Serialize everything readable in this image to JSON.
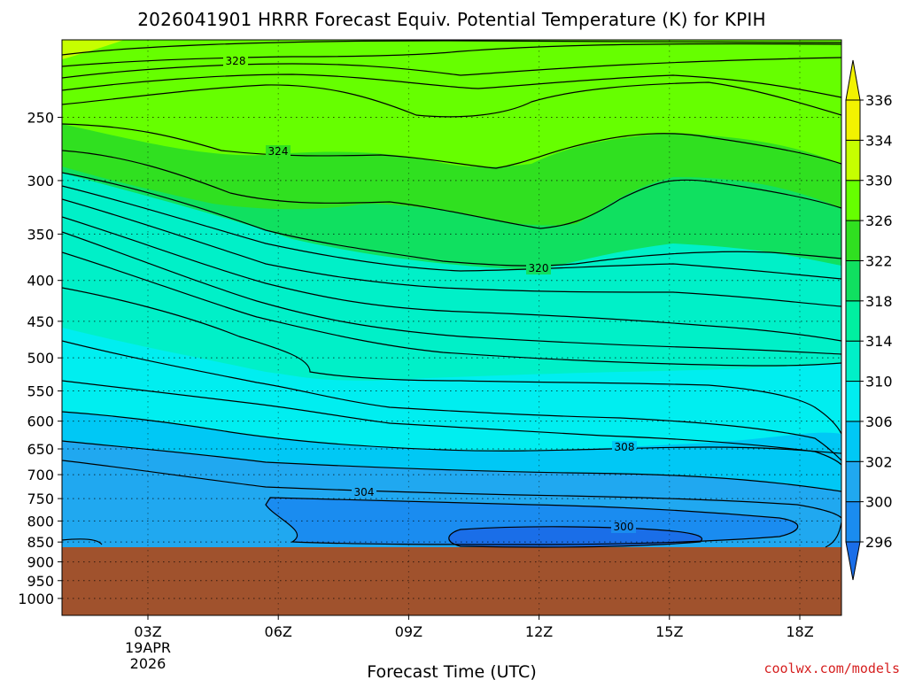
{
  "chart_data": {
    "type": "contour",
    "title": "2026041901 HRRR Forecast Equiv. Potential Temperature (K) for KPIH",
    "xlabel": "Forecast Time (UTC)",
    "ylabel": "",
    "x_tick_labels": [
      "03Z",
      "06Z",
      "09Z",
      "12Z",
      "15Z",
      "18Z"
    ],
    "x_date_label": [
      "19APR",
      "2026"
    ],
    "y_scale": "log",
    "y_ticks": [
      250,
      300,
      350,
      400,
      450,
      500,
      550,
      600,
      650,
      700,
      750,
      800,
      850,
      900,
      950,
      1000
    ],
    "y_range_hpa": [
      200,
      1050
    ],
    "surface_pressure_hpa": 862,
    "grid": true,
    "colorbar": {
      "levels": [
        296,
        300,
        302,
        306,
        310,
        314,
        318,
        322,
        326,
        330,
        334,
        336
      ],
      "colors": [
        "#1a6ee8",
        "#1a8cf0",
        "#20a8f0",
        "#00c8f5",
        "#00eef0",
        "#00f0c8",
        "#00f0a0",
        "#10e060",
        "#30e020",
        "#66ff00",
        "#c6ff00",
        "#f2f200"
      ]
    },
    "contour_labels": [
      {
        "value": "328"
      },
      {
        "value": "324"
      },
      {
        "value": "320"
      },
      {
        "value": "308"
      },
      {
        "value": "304"
      },
      {
        "value": "300"
      }
    ],
    "ground_color": "#a0522d"
  },
  "credit": "coolwx.com/models"
}
